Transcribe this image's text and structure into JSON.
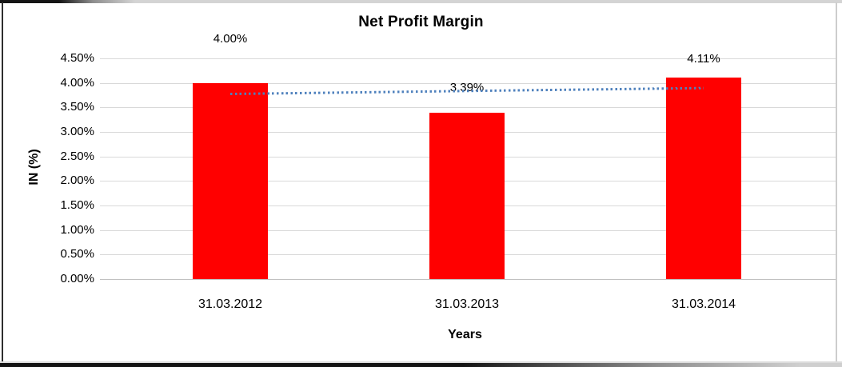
{
  "chart_data": {
    "type": "bar",
    "title": "Net Profit Margin",
    "xlabel": "Years",
    "ylabel": "IN (%)",
    "categories": [
      "31.03.2012",
      "31.03.2013",
      "31.03.2014"
    ],
    "series": [
      {
        "name": "Net Profit Margin",
        "color": "#ff0000",
        "values": [
          4.0,
          3.39,
          4.11
        ],
        "value_labels": [
          "4.00%",
          "3.39%",
          "4.11%"
        ]
      }
    ],
    "y_axis": {
      "min": 0,
      "max": 4.5,
      "step": 0.5,
      "tick_labels": [
        "0.00%",
        "0.50%",
        "1.00%",
        "1.50%",
        "2.00%",
        "2.50%",
        "3.00%",
        "3.50%",
        "4.00%",
        "4.50%"
      ]
    },
    "ylim": [
      0,
      4.5
    ],
    "grid": true,
    "legend": "none",
    "trendline": {
      "type": "linear",
      "style": "dotted",
      "color": "#4f81bd",
      "start_value": 3.78,
      "end_value": 3.9
    }
  }
}
